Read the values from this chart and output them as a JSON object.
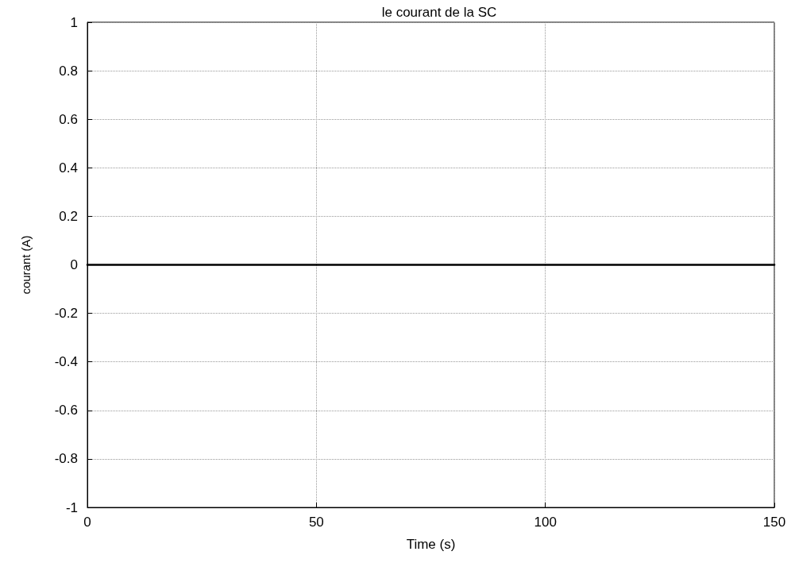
{
  "chart_data": {
    "type": "line",
    "title": "le courant de la SC",
    "xlabel": "Time (s)",
    "ylabel": "courant (A)",
    "x": [
      0,
      150
    ],
    "series": [
      {
        "color": "#000000",
        "values": [
          0,
          0
        ]
      }
    ],
    "xlim": [
      0,
      150
    ],
    "xticks": [
      0,
      50,
      100,
      150
    ],
    "ylim": [
      -1,
      1
    ],
    "yticks": [
      -1,
      -0.8,
      -0.6,
      -0.4,
      -0.2,
      0,
      0.2,
      0.4,
      0.6,
      0.8,
      1
    ],
    "grid": true,
    "marker": "none",
    "line_style": "solid"
  }
}
